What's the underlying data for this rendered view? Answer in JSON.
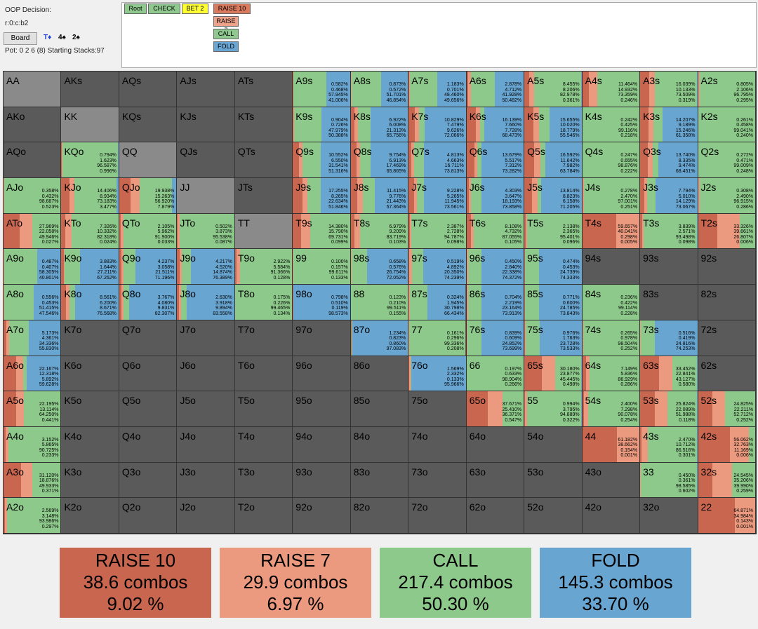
{
  "info": {
    "decision": "OOP Decision:",
    "line": "r:0:c:b2",
    "board_button": "Board",
    "board_cards": [
      {
        "text": "T♦",
        "color": "#1a3fd6"
      },
      {
        "text": "4♠",
        "color": "#000000"
      },
      {
        "text": "2♠",
        "color": "#000000"
      }
    ],
    "pot": "Pot: 0 2 6 (8) Starting Stacks:97"
  },
  "tree": {
    "nodes": [
      {
        "label": "Root",
        "color": "#8fc98f"
      },
      {
        "label": "CHECK",
        "color": "#8fc98f"
      },
      {
        "label": "BET 2",
        "color": "#ffff33"
      },
      {
        "label": "RAISE 10",
        "color": "#d97a5e"
      },
      {
        "label": "RAISE 7",
        "color": "#eea28a"
      },
      {
        "label": "CALL",
        "color": "#8fc98f"
      },
      {
        "label": "FOLD",
        "color": "#6aa6d3"
      }
    ]
  },
  "colors": {
    "raise10": "#c9664f",
    "raise7": "#eb9a7f",
    "call": "#8dc98a",
    "fold": "#69a5d1",
    "empty": "#5a5a5a",
    "pair_empty": "#8a8a8a"
  },
  "ranks": [
    "A",
    "K",
    "Q",
    "J",
    "T",
    "9",
    "8",
    "7",
    "6",
    "5",
    "4",
    "3",
    "2"
  ],
  "cells": {
    "A9s": [
      "0.582%",
      "0.468%",
      "57.945%",
      "41.006%"
    ],
    "A8s": [
      "0.873%",
      "0.572%",
      "51.701%",
      "46.854%"
    ],
    "A7s": [
      "1.183%",
      "0.701%",
      "48.460%",
      "49.656%"
    ],
    "A6s": [
      "2.878%",
      "4.712%",
      "41.928%",
      "50.482%"
    ],
    "A5s": [
      "8.455%",
      "8.206%",
      "82.978%",
      "0.361%"
    ],
    "A4s": [
      "11.464%",
      "14.932%",
      "73.359%",
      "0.246%"
    ],
    "A3s": [
      "16.039%",
      "10.133%",
      "73.509%",
      "0.319%"
    ],
    "A2s": [
      "0.805%",
      "2.106%",
      "96.795%",
      "0.295%"
    ],
    "K9s": [
      "0.904%",
      "0.726%",
      "47.979%",
      "50.388%"
    ],
    "K8s": [
      "6.922%",
      "6.008%",
      "21.313%",
      "65.756%"
    ],
    "K7s": [
      "10.829%",
      "7.479%",
      "9.626%",
      "72.066%"
    ],
    "K6s": [
      "16.139%",
      "7.660%",
      "7.728%",
      "68.473%"
    ],
    "K5s": [
      "15.655%",
      "10.020%",
      "18.779%",
      "55.546%"
    ],
    "K4s": [
      "0.242%",
      "0.425%",
      "99.116%",
      "0.218%"
    ],
    "K3s": [
      "14.207%",
      "9.189%",
      "15.246%",
      "61.358%"
    ],
    "K2s": [
      "0.261%",
      "0.458%",
      "99.041%",
      "0.240%"
    ],
    "KQo": [
      "0.794%",
      "1.623%",
      "96.587%",
      "0.996%"
    ],
    "Q9s": [
      "10.552%",
      "6.550%",
      "31.541%",
      "51.316%"
    ],
    "Q8s": [
      "9.754%",
      "6.913%",
      "17.469%",
      "65.865%"
    ],
    "Q7s": [
      "4.813%",
      "4.663%",
      "16.711%",
      "73.813%"
    ],
    "Q6s": [
      "13.679%",
      "5.517%",
      "7.312%",
      "73.282%"
    ],
    "Q5s": [
      "16.592%",
      "11.642%",
      "7.982%",
      "63.784%"
    ],
    "Q4s": [
      "0.247%",
      "0.655%",
      "98.876%",
      "0.222%"
    ],
    "Q3s": [
      "13.740%",
      "8.335%",
      "9.474%",
      "68.451%"
    ],
    "Q2s": [
      "0.272%",
      "0.471%",
      "99.009%",
      "0.248%"
    ],
    "AJo": [
      "0.358%",
      "0.432%",
      "98.687%",
      "0.523%"
    ],
    "KJo": [
      "14.406%",
      "8.934%",
      "73.183%",
      "3.477%"
    ],
    "QJo": [
      "19.938%",
      "15.263%",
      "56.920%",
      "7.879%"
    ],
    "J9s": [
      "17.255%",
      "8.265%",
      "22.634%",
      "51.846%"
    ],
    "J8s": [
      "11.415%",
      "9.776%",
      "21.443%",
      "57.364%"
    ],
    "J7s": [
      "9.228%",
      "5.265%",
      "11.945%",
      "73.561%"
    ],
    "J6s": [
      "4.303%",
      "3.647%",
      "18.193%",
      "73.858%"
    ],
    "J5s": [
      "13.814%",
      "8.823%",
      "6.158%",
      "71.205%"
    ],
    "J4s": [
      "0.278%",
      "2.470%",
      "97.001%",
      "0.251%"
    ],
    "J3s": [
      "7.794%",
      "5.010%",
      "14.129%",
      "73.067%"
    ],
    "J2s": [
      "0.308%",
      "2.490%",
      "96.915%",
      "0.286%"
    ],
    "ATo": [
      "27.969%",
      "22.058%",
      "49.946%",
      "0.027%"
    ],
    "KTo": [
      "7.326%",
      "10.332%",
      "82.318%",
      "0.024%"
    ],
    "QTo": [
      "2.105%",
      "5.962%",
      "91.900%",
      "0.033%"
    ],
    "JTo": [
      "0.502%",
      "3.873%",
      "95.538%",
      "0.087%"
    ],
    "T9s": [
      "14.380%",
      "15.790%",
      "69.731%",
      "0.099%"
    ],
    "T8s": [
      "6.979%",
      "9.209%",
      "83.719%",
      "0.103%"
    ],
    "T7s": [
      "2.387%",
      "2.728%",
      "94.787%",
      "0.098%"
    ],
    "T6s": [
      "8.108%",
      "4.732%",
      "87.055%",
      "0.105%"
    ],
    "T5s": [
      "2.138%",
      "2.365%",
      "95.401%",
      "0.096%"
    ],
    "T4s": [
      "59.657%",
      "40.041%",
      "0.298%",
      "0.005%"
    ],
    "T3s": [
      "3.839%",
      "2.571%",
      "93.498%",
      "0.098%"
    ],
    "T2s": [
      "33.326%",
      "39.661%",
      "26.807%",
      "0.006%"
    ],
    "A9o": [
      "0.487%",
      "0.407%",
      "58.305%",
      "40.801%"
    ],
    "K9o": [
      "3.883%",
      "1.644%",
      "27.211%",
      "67.262%"
    ],
    "Q9o": [
      "4.237%",
      "3.058%",
      "21.511%",
      "71.196%"
    ],
    "J9o": [
      "4.217%",
      "4.520%",
      "14.874%",
      "76.389%"
    ],
    "T9o": [
      "2.922%",
      "5.584%",
      "91.366%",
      "0.128%"
    ],
    "99": [
      "0.100%",
      "0.157%",
      "99.611%",
      "0.133%"
    ],
    "98s": [
      "0.658%",
      "0.576%",
      "26.754%",
      "72.052%"
    ],
    "97s": [
      "0.519%",
      "4.892%",
      "20.350%",
      "74.239%"
    ],
    "96s": [
      "0.450%",
      "2.840%",
      "22.338%",
      "74.372%"
    ],
    "95s": [
      "0.474%",
      "0.453%",
      "24.739%",
      "74.333%"
    ],
    "A8o": [
      "0.556%",
      "0.453%",
      "51.415%",
      "47.546%"
    ],
    "K8o": [
      "8.561%",
      "6.200%",
      "8.671%",
      "76.568%"
    ],
    "Q8o": [
      "3.767%",
      "4.080%",
      "9.831%",
      "82.307%"
    ],
    "J8o": [
      "2.630%",
      "3.918%",
      "9.894%",
      "83.558%"
    ],
    "T8o": [
      "0.175%",
      "0.226%",
      "99.465%",
      "0.134%"
    ],
    "98o": [
      "0.798%",
      "0.510%",
      "0.119%",
      "98.573%"
    ],
    "88": [
      "0.123%",
      "0.210%",
      "99.511%",
      "0.155%"
    ],
    "87s": [
      "0.324%",
      "1.945%",
      "30.798%",
      "66.434%"
    ],
    "86s": [
      "0.704%",
      "2.219%",
      "23.164%",
      "73.913%"
    ],
    "85s": [
      "0.771%",
      "0.600%",
      "24.785%",
      "73.843%"
    ],
    "84s": [
      "0.236%",
      "0.422%",
      "99.114%",
      "0.228%"
    ],
    "A7o": [
      "5.173%",
      "4.361%",
      "34.336%",
      "55.830%"
    ],
    "87o": [
      "1.234%",
      "0.823%",
      "0.860%",
      "97.083%"
    ],
    "77": [
      "0.161%",
      "0.296%",
      "99.336%",
      "0.208%"
    ],
    "76s": [
      "0.839%",
      "0.609%",
      "24.852%",
      "73.699%"
    ],
    "75s": [
      "0.976%",
      "1.763%",
      "23.728%",
      "73.533%"
    ],
    "74s": [
      "0.265%",
      "0.978%",
      "98.504%",
      "0.252%"
    ],
    "73s": [
      "0.516%",
      "0.419%",
      "24.816%",
      "74.253%"
    ],
    "A6o": [
      "22.167%",
      "12.318%",
      "5.892%",
      "59.628%"
    ],
    "76o": [
      "1.569%",
      "2.332%",
      "0.133%",
      "95.966%"
    ],
    "66": [
      "0.197%",
      "0.633%",
      "98.904%",
      "0.266%"
    ],
    "65s": [
      "30.180%",
      "23.877%",
      "45.445%",
      "0.498%"
    ],
    "64s": [
      "7.149%",
      "5.836%",
      "86.929%",
      "0.286%"
    ],
    "63s": [
      "33.452%",
      "22.841%",
      "43.127%",
      "0.580%"
    ],
    "A5o": [
      "22.195%",
      "13.114%",
      "64.250%",
      "0.441%"
    ],
    "65o": [
      "37.671%",
      "25.410%",
      "36.371%",
      "0.547%"
    ],
    "55": [
      "0.994%",
      "3.795%",
      "94.889%",
      "0.322%"
    ],
    "54s": [
      "2.400%",
      "7.298%",
      "90.078%",
      "0.254%"
    ],
    "53s": [
      "25.824%",
      "22.089%",
      "51.988%",
      "0.118%"
    ],
    "52s": [
      "24.825%",
      "22.211%",
      "52.712%",
      "0.252%"
    ],
    "A4o": [
      "3.152%",
      "5.865%",
      "90.725%",
      "0.233%"
    ],
    "44": [
      "61.182%",
      "38.662%",
      "0.154%",
      "0.001%"
    ],
    "43s": [
      "2.470%",
      "10.712%",
      "86.516%",
      "0.301%"
    ],
    "42s": [
      "56.062%",
      "32.763%",
      "11.169%",
      "0.006%"
    ],
    "A3o": [
      "31.120%",
      "18.876%",
      "49.933%",
      "0.371%"
    ],
    "33": [
      "0.450%",
      "0.361%",
      "98.585%",
      "0.602%"
    ],
    "32s": [
      "24.545%",
      "35.206%",
      "39.990%",
      "0.259%"
    ],
    "A2o": [
      "2.569%",
      "3.148%",
      "93.986%",
      "0.297%"
    ],
    "22": [
      "64.871%",
      "34.984%",
      "0.143%",
      "0.001%"
    ]
  },
  "summary": [
    {
      "name": "RAISE 10",
      "combos": "38.6 combos",
      "pct": "9.02 %",
      "color": "#c9664f"
    },
    {
      "name": "RAISE 7",
      "combos": "29.9 combos",
      "pct": "6.97 %",
      "color": "#eb9a7f"
    },
    {
      "name": "CALL",
      "combos": "217.4 combos",
      "pct": "50.30 %",
      "color": "#8dc98a"
    },
    {
      "name": "FOLD",
      "combos": "145.3 combos",
      "pct": "33.70 %",
      "color": "#69a5d1"
    }
  ]
}
